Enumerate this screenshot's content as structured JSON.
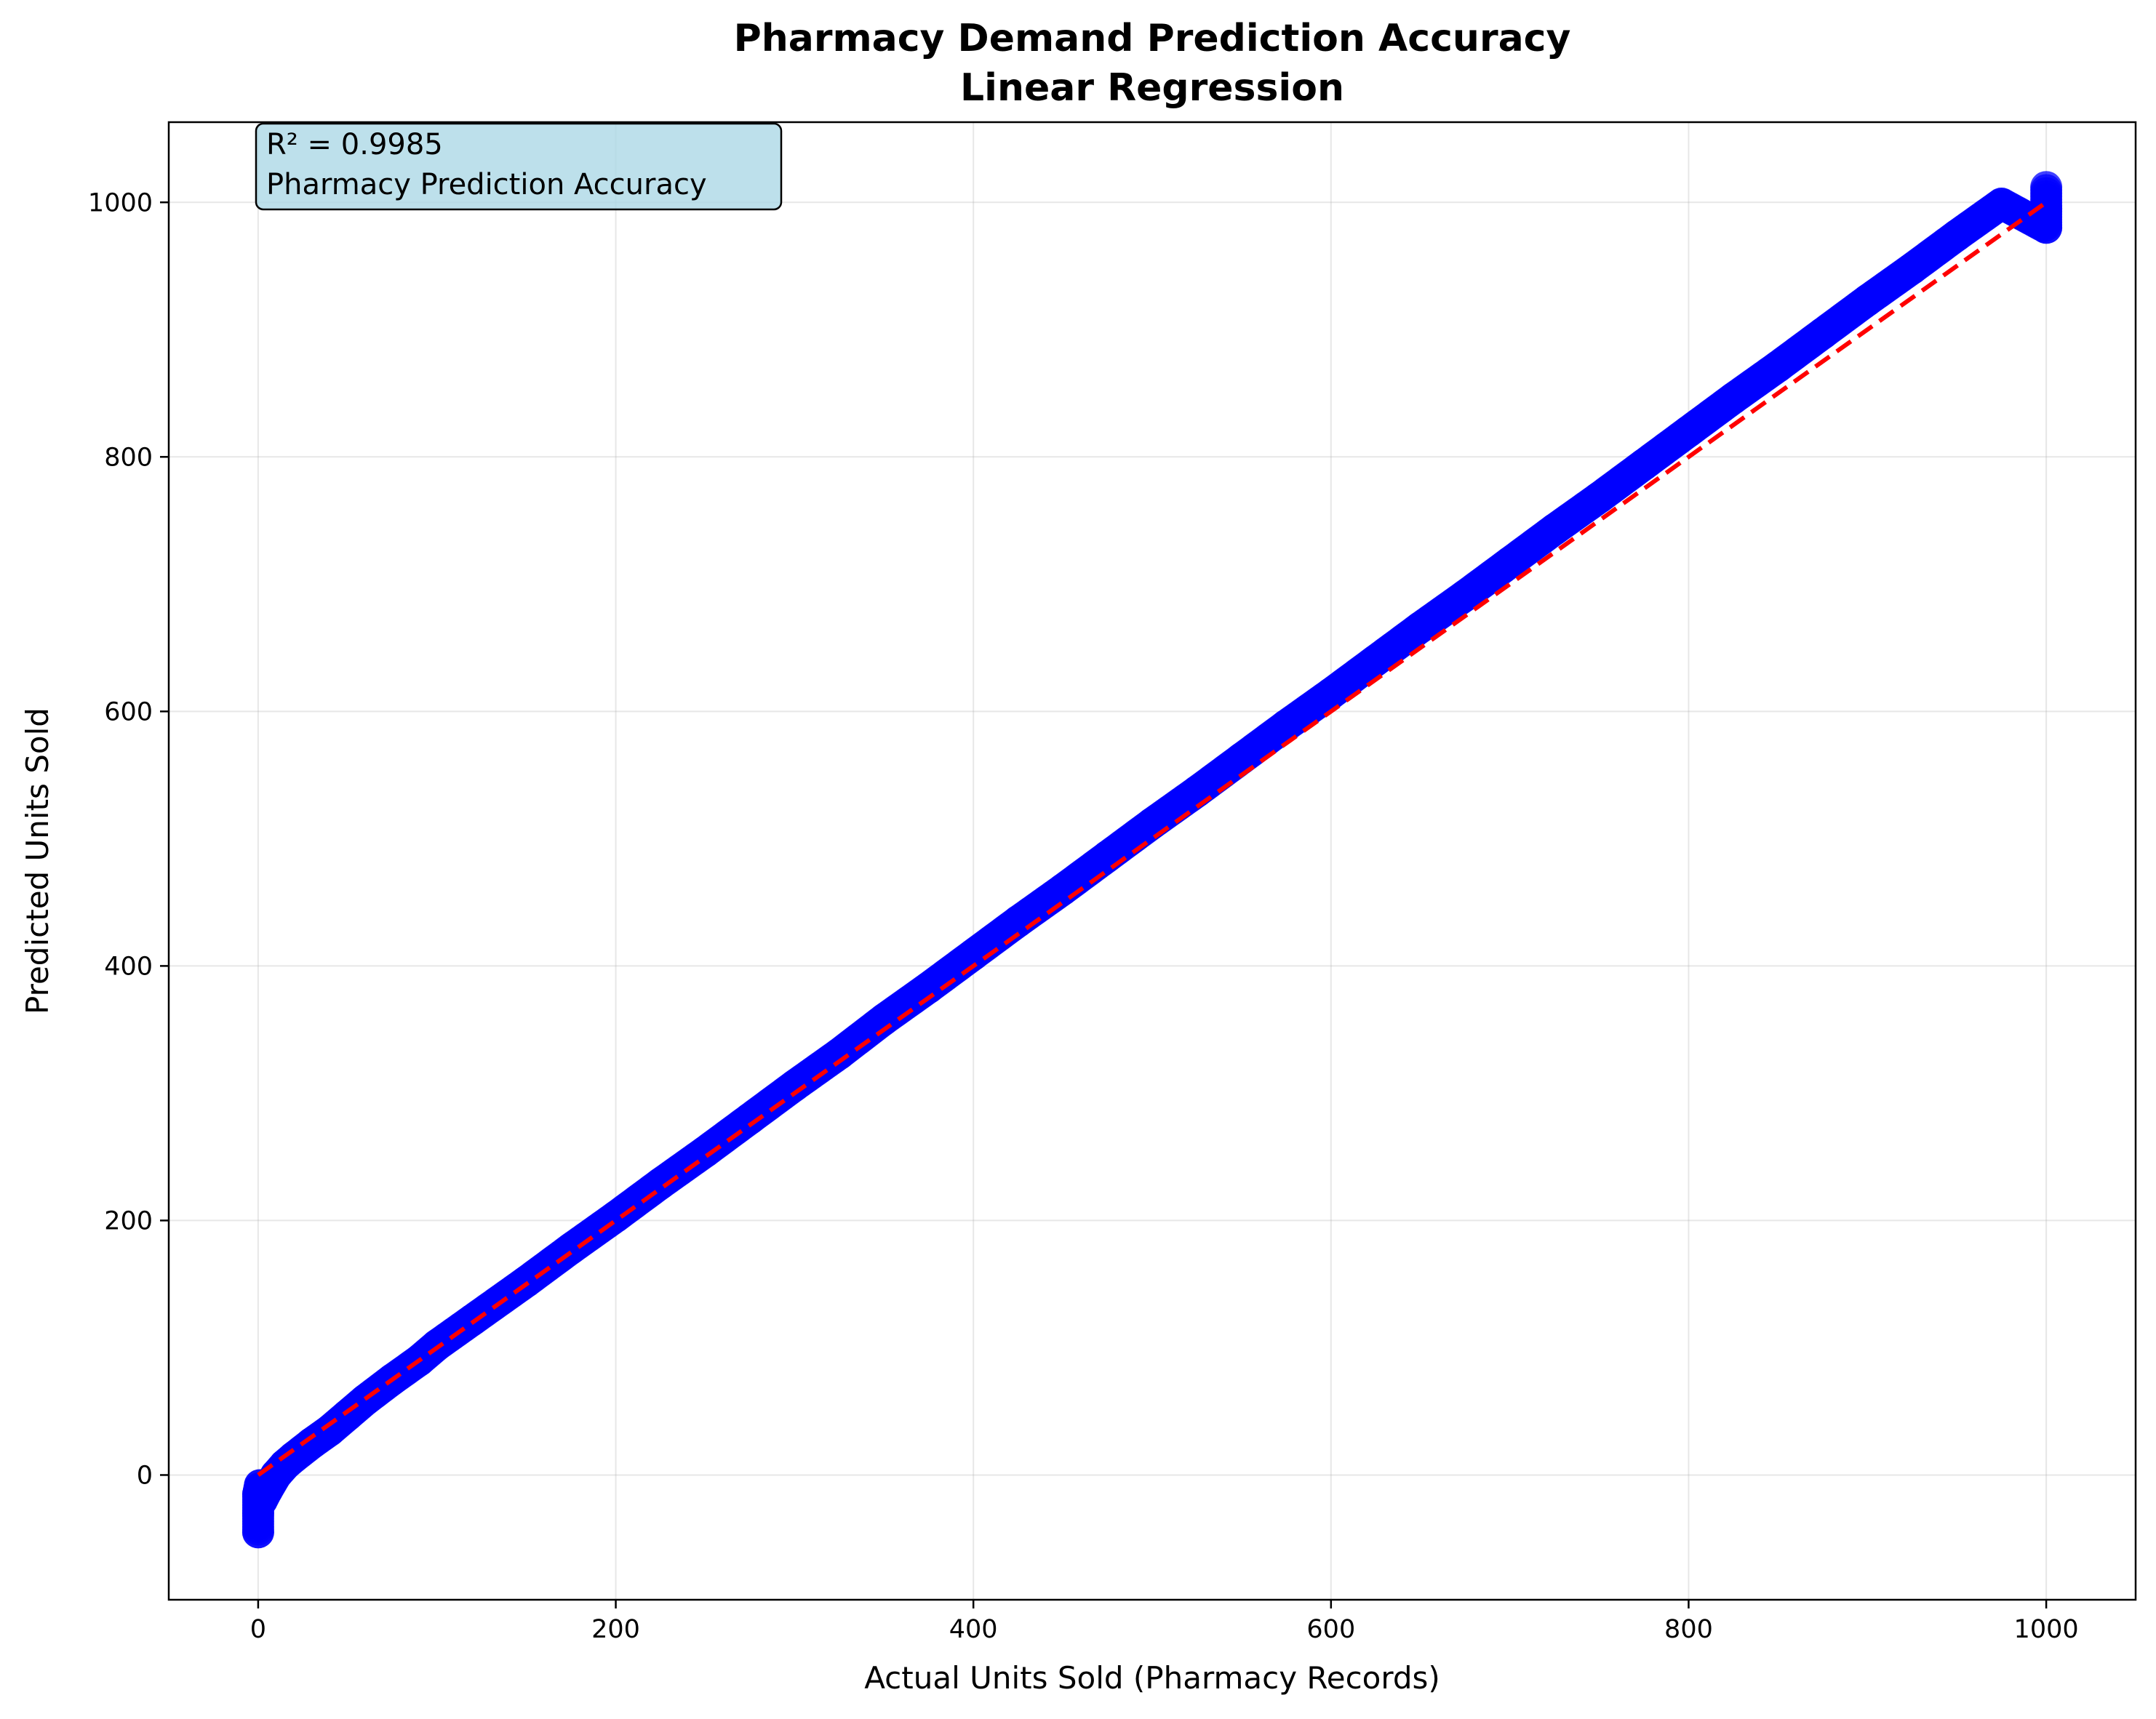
{
  "chart_data": {
    "type": "scatter",
    "title_lines": [
      "Pharmacy Demand Prediction Accuracy",
      "Linear Regression"
    ],
    "xlabel": "Actual Units Sold (Pharmacy Records)",
    "ylabel": "Predicted Units Sold",
    "xlim": [
      -50,
      1050
    ],
    "ylim": [
      -98,
      1063
    ],
    "xticks": [
      0,
      200,
      400,
      600,
      800,
      1000
    ],
    "yticks": [
      0,
      200,
      400,
      600,
      800,
      1000
    ],
    "grid": true,
    "series": [
      {
        "kind": "scatter",
        "color": "#0000ff",
        "points": [
          [
            0,
            -45
          ],
          [
            0,
            -30
          ],
          [
            0,
            -15
          ],
          [
            1,
            -8
          ],
          [
            2,
            -20
          ],
          [
            5,
            -12
          ],
          [
            10,
            0
          ],
          [
            15,
            8
          ],
          [
            20,
            14
          ],
          [
            30,
            25
          ],
          [
            40,
            35
          ],
          [
            50,
            47
          ],
          [
            60,
            59
          ],
          [
            75,
            75
          ],
          [
            90,
            90
          ],
          [
            100,
            102
          ],
          [
            120,
            122
          ],
          [
            150,
            152
          ],
          [
            175,
            178
          ],
          [
            200,
            203
          ],
          [
            225,
            229
          ],
          [
            250,
            254
          ],
          [
            275,
            280
          ],
          [
            300,
            306
          ],
          [
            325,
            331
          ],
          [
            350,
            358
          ],
          [
            375,
            383
          ],
          [
            400,
            409
          ],
          [
            425,
            435
          ],
          [
            450,
            460
          ],
          [
            475,
            486
          ],
          [
            500,
            512
          ],
          [
            525,
            537
          ],
          [
            550,
            563
          ],
          [
            575,
            589
          ],
          [
            600,
            614
          ],
          [
            625,
            640
          ],
          [
            650,
            666
          ],
          [
            675,
            691
          ],
          [
            700,
            717
          ],
          [
            725,
            743
          ],
          [
            750,
            768
          ],
          [
            775,
            794
          ],
          [
            800,
            820
          ],
          [
            825,
            846
          ],
          [
            850,
            871
          ],
          [
            875,
            897
          ],
          [
            900,
            923
          ],
          [
            925,
            948
          ],
          [
            950,
            974
          ],
          [
            975,
            999
          ],
          [
            1000,
            1012
          ],
          [
            1000,
            995
          ],
          [
            1000,
            980
          ]
        ]
      },
      {
        "kind": "reference-line",
        "color": "#ff0000",
        "style": "dashed",
        "from": [
          0,
          0
        ],
        "to": [
          1000,
          1000
        ]
      }
    ],
    "annotation": {
      "lines": [
        "R² = 0.9985",
        "Pharmacy Prediction Accuracy"
      ],
      "background": "#add8e6"
    }
  }
}
